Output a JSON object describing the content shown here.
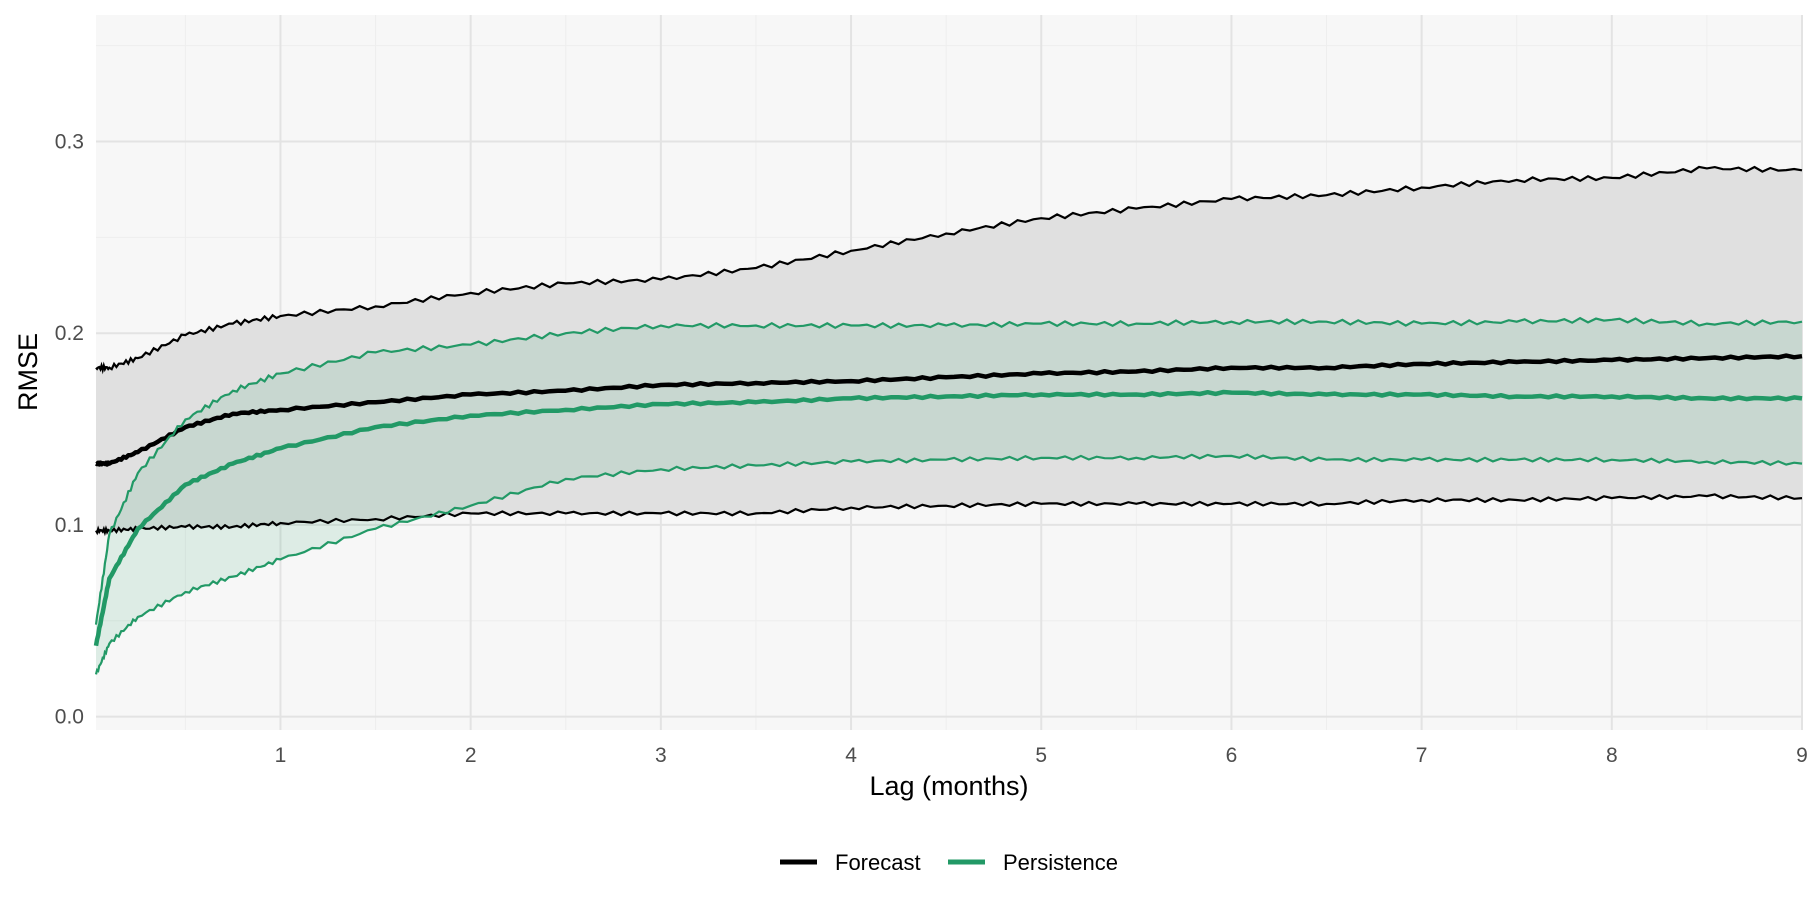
{
  "chart_data": {
    "type": "line",
    "xlabel": "Lag (months)",
    "ylabel": "RMSE",
    "xlim": [
      0.03,
      9
    ],
    "ylim": [
      -0.007,
      0.366
    ],
    "x_ticks": [
      1,
      2,
      3,
      4,
      5,
      6,
      7,
      8,
      9
    ],
    "y_ticks": [
      0.0,
      0.1,
      0.2,
      0.3
    ],
    "y_tick_labels": [
      "0.0",
      "0.1",
      "0.2",
      "0.3"
    ],
    "grid": true,
    "legend_position": "bottom",
    "legend": [
      "Forecast",
      "Persistence"
    ],
    "x": [
      0.03,
      0.1,
      0.25,
      0.5,
      0.75,
      1,
      1.5,
      2,
      2.5,
      3,
      3.5,
      4,
      4.5,
      5,
      5.5,
      6,
      6.5,
      7,
      7.5,
      8,
      8.5,
      9
    ],
    "series": [
      {
        "name": "Forecast",
        "color": "#000000",
        "band_fill": "#e0e0e0",
        "mean": [
          0.132,
          0.132,
          0.138,
          0.151,
          0.158,
          0.16,
          0.164,
          0.168,
          0.17,
          0.173,
          0.174,
          0.175,
          0.177,
          0.179,
          0.18,
          0.182,
          0.182,
          0.184,
          0.185,
          0.186,
          0.187,
          0.188
        ],
        "upper": [
          0.182,
          0.182,
          0.187,
          0.199,
          0.205,
          0.209,
          0.214,
          0.221,
          0.226,
          0.228,
          0.234,
          0.243,
          0.252,
          0.26,
          0.265,
          0.27,
          0.272,
          0.276,
          0.28,
          0.281,
          0.286,
          0.285
        ],
        "lower": [
          0.097,
          0.097,
          0.098,
          0.099,
          0.099,
          0.101,
          0.103,
          0.106,
          0.106,
          0.106,
          0.106,
          0.109,
          0.11,
          0.111,
          0.111,
          0.111,
          0.111,
          0.113,
          0.113,
          0.114,
          0.115,
          0.114
        ]
      },
      {
        "name": "Persistence",
        "color": "#229966",
        "band_fill": "rgba(34,153,102,0.12)",
        "mean": [
          0.037,
          0.072,
          0.098,
          0.121,
          0.132,
          0.14,
          0.151,
          0.157,
          0.16,
          0.163,
          0.164,
          0.166,
          0.167,
          0.168,
          0.168,
          0.169,
          0.168,
          0.168,
          0.167,
          0.167,
          0.166,
          0.166
        ],
        "upper": [
          0.048,
          0.095,
          0.127,
          0.155,
          0.17,
          0.179,
          0.19,
          0.194,
          0.2,
          0.204,
          0.204,
          0.204,
          0.204,
          0.205,
          0.205,
          0.206,
          0.206,
          0.205,
          0.206,
          0.207,
          0.205,
          0.206
        ],
        "lower": [
          0.022,
          0.038,
          0.052,
          0.065,
          0.073,
          0.082,
          0.098,
          0.11,
          0.124,
          0.129,
          0.131,
          0.133,
          0.134,
          0.135,
          0.135,
          0.136,
          0.134,
          0.134,
          0.134,
          0.134,
          0.133,
          0.132
        ]
      }
    ]
  }
}
